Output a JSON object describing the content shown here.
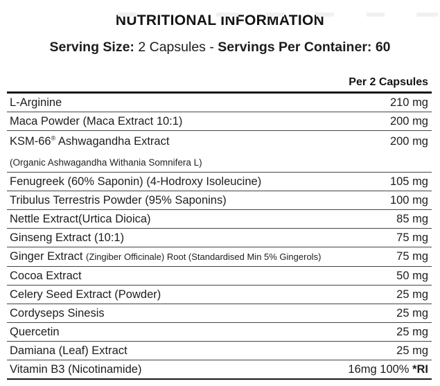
{
  "header": {
    "title": "NUTRITIONAL INFORMATION",
    "serving_size_label": "Serving Size:",
    "serving_size_value": " 2 Capsules - ",
    "servings_per_container": "Servings Per Container: 60",
    "column_header": "Per 2 Capsules"
  },
  "table": {
    "rows": [
      {
        "name": "L-Arginine",
        "value": "210 mg"
      },
      {
        "name": "Maca Powder (Maca Extract 10:1)",
        "value": "200 mg"
      },
      {
        "name": "KSM-66",
        "sup": "®",
        "name_after_sup": " Ashwagandha Extract",
        "subtext": "(Organic Ashwagandha Withania Somnifera L)",
        "value": "200 mg"
      },
      {
        "name": "Fenugreek (60% Saponin) (4-Hodroxy Isoleucine)",
        "value": "105 mg"
      },
      {
        "name": "Tribulus Terrestris Powder (95% Saponins)",
        "value": "100 mg"
      },
      {
        "name": "Nettle Extract(Urtica Dioica)",
        "value": "85 mg"
      },
      {
        "name": "Ginseng Extract (10:1)",
        "value": "75 mg"
      },
      {
        "name": "Ginger Extract ",
        "name_small": "(Zingiber Officinale) Root (Standardised Min 5% Gingerols)",
        "value": "75 mg"
      },
      {
        "name": "Cocoa Extract",
        "value": "50 mg"
      },
      {
        "name": "Celery Seed Extract (Powder)",
        "value": "25 mg"
      },
      {
        "name": "Cordyseps Sinesis",
        "value": "25 mg"
      },
      {
        "name": "Quercetin",
        "value": "25 mg"
      },
      {
        "name": "Damiana (Leaf) Extract",
        "value": "25 mg"
      },
      {
        "name": "Vitamin B3 (Nicotinamide)",
        "value": "16mg 100% ",
        "value_bold": "*RI"
      }
    ]
  },
  "colors": {
    "text": "#1d1d1d",
    "rule": "#434343",
    "heavy_rule": "#161616",
    "background": "#ffffff"
  }
}
